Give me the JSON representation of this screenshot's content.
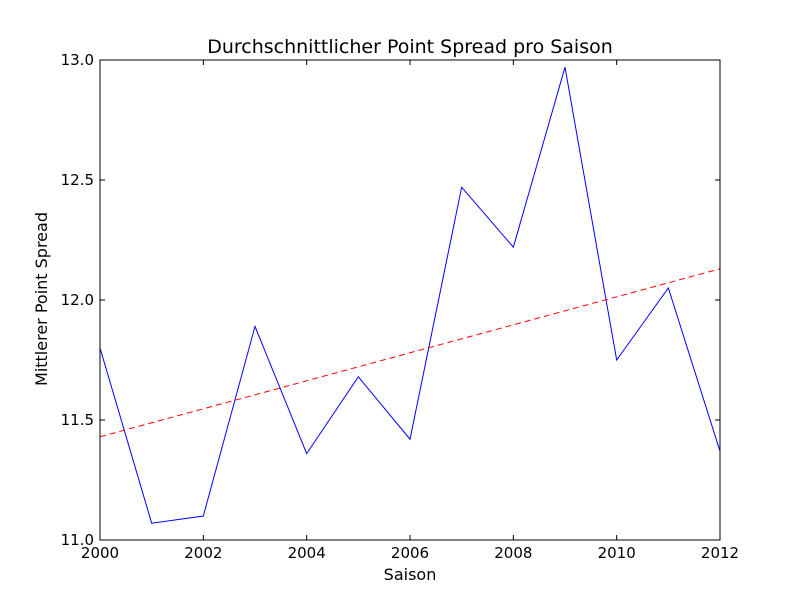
{
  "chart_data": {
    "type": "line",
    "title": "Durchschnittlicher Point Spread pro Saison",
    "xlabel": "Saison",
    "ylabel": "Mittlerer Point Spread",
    "xlim": [
      2000,
      2012
    ],
    "ylim": [
      11.0,
      13.0
    ],
    "x_ticks": [
      2000,
      2002,
      2004,
      2006,
      2008,
      2010,
      2012
    ],
    "y_ticks": [
      11.0,
      11.5,
      12.0,
      12.5,
      13.0
    ],
    "x_tick_labels": [
      "2000",
      "2002",
      "2004",
      "2006",
      "2008",
      "2010",
      "2012"
    ],
    "y_tick_labels": [
      "11.0",
      "11.5",
      "12.0",
      "12.5",
      "13.0"
    ],
    "grid": false,
    "legend": false,
    "series": [
      {
        "style": "solid",
        "color": "#0000ff",
        "x": [
          2000,
          2001,
          2002,
          2003,
          2004,
          2005,
          2006,
          2007,
          2008,
          2009,
          2010,
          2011,
          2012
        ],
        "y": [
          11.8,
          11.07,
          11.1,
          11.89,
          11.36,
          11.68,
          11.42,
          12.47,
          12.22,
          12.97,
          11.75,
          12.05,
          11.37
        ]
      },
      {
        "style": "dashed",
        "color": "#ff0000",
        "x": [
          2000,
          2012
        ],
        "y": [
          11.43,
          12.13
        ]
      }
    ]
  }
}
